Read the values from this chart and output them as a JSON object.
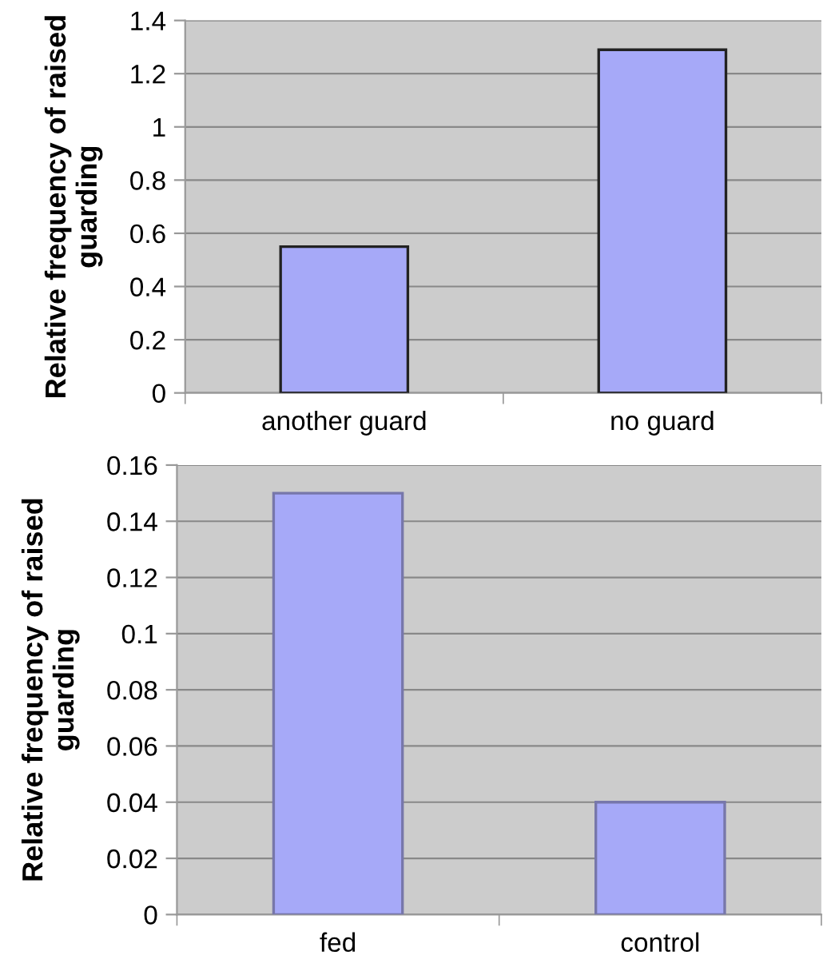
{
  "chart_data": [
    {
      "type": "bar",
      "ylabel": "Relative frequency of raised\nguarding",
      "categories": [
        "another guard",
        "no guard"
      ],
      "values": [
        0.55,
        1.29
      ],
      "color": "#a6a9f8",
      "ylim": [
        0,
        1.4
      ],
      "yticks": [
        0,
        0.2,
        0.4,
        0.6,
        0.8,
        1,
        1.2,
        1.4
      ],
      "grid": "y",
      "legend": false
    },
    {
      "type": "bar",
      "ylabel": "Relative frequency of raised\nguarding",
      "categories": [
        "fed",
        "control"
      ],
      "values": [
        0.15,
        0.04
      ],
      "color": "#a6a9f8",
      "ylim": [
        0,
        0.16
      ],
      "yticks": [
        0,
        0.02,
        0.04,
        0.06,
        0.08,
        0.1,
        0.12,
        0.14,
        0.16
      ],
      "grid": "y",
      "legend": false
    }
  ]
}
